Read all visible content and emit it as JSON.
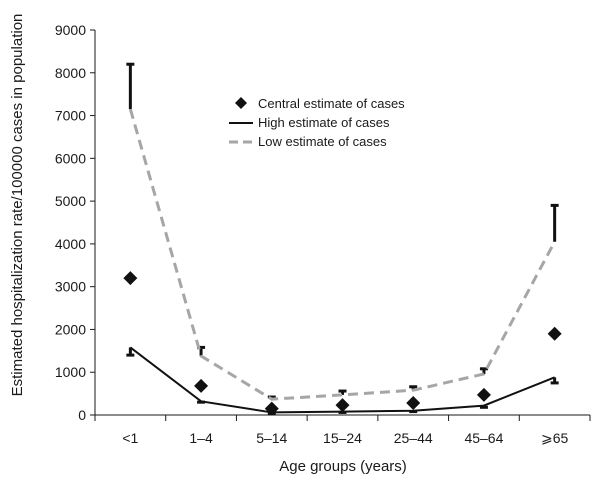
{
  "chart_data": {
    "type": "line",
    "title": "",
    "xlabel": "Age groups (years)",
    "ylabel": "Estimated hospitalization rate/100000 cases in population",
    "ylim": [
      0,
      9000
    ],
    "yticks": [
      0,
      1000,
      2000,
      3000,
      4000,
      5000,
      6000,
      7000,
      8000,
      9000
    ],
    "categories": [
      "<1",
      "1–4",
      "5–14",
      "15–24",
      "25–44",
      "45–64",
      "⩾65"
    ],
    "series": [
      {
        "name": "Central estimate of cases",
        "style": "diamond-markers",
        "color": "#111111",
        "values": [
          3200,
          680,
          150,
          230,
          280,
          470,
          1900
        ]
      },
      {
        "name": "High estimate of cases",
        "style": "solid-line",
        "color": "#111111",
        "values": [
          1580,
          320,
          60,
          80,
          100,
          220,
          880
        ],
        "error_low": [
          1400,
          300,
          40,
          60,
          80,
          180,
          750
        ]
      },
      {
        "name": "Low estimate of cases",
        "style": "dashed-line",
        "color": "#a6a6a6",
        "values": [
          7150,
          1380,
          370,
          470,
          580,
          960,
          4050
        ],
        "error_high": [
          8200,
          1580,
          420,
          560,
          660,
          1080,
          4900
        ]
      }
    ],
    "legend_position": "top-center",
    "grid": false
  }
}
